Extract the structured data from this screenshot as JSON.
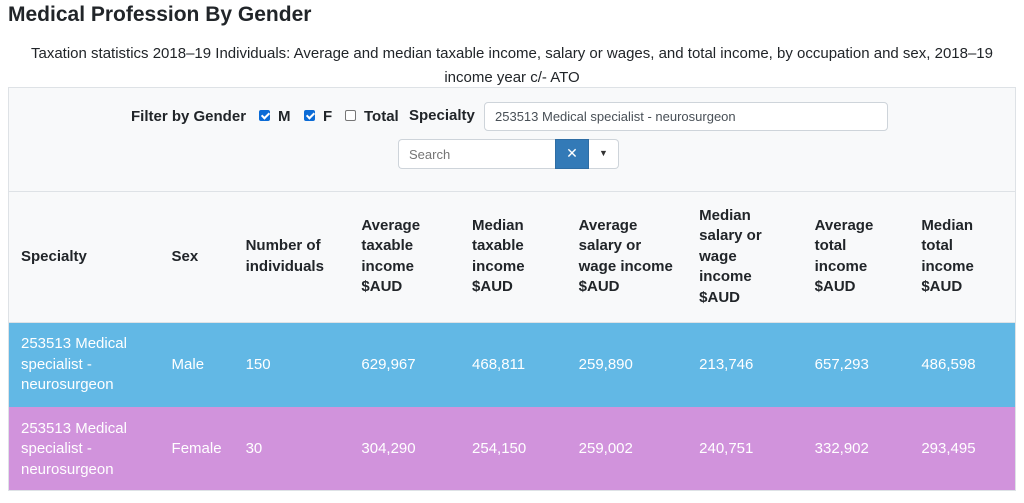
{
  "page": {
    "title": "Medical Profession By Gender",
    "subtitle": "Taxation statistics 2018–19 Individuals: Average and median taxable income, salary or wages, and total income, by occupation and sex, 2018–19 income year c/- ATO"
  },
  "filters": {
    "gender_label": "Filter by Gender",
    "male_label": "M",
    "female_label": "F",
    "total_label": "Total",
    "male_checked": true,
    "female_checked": true,
    "total_checked": false,
    "specialty_label": "Specialty",
    "specialty_value": "253513 Medical specialist - neurosurgeon",
    "search_placeholder": "Search",
    "clear_symbol": "✕",
    "dropdown_symbol": "▼"
  },
  "table": {
    "headers": [
      "Specialty",
      "Sex",
      "Number of individuals",
      "Average taxable income $AUD",
      "Median taxable income $AUD",
      "Average salary or wage income $AUD",
      "Median salary or wage income $AUD",
      "Average total income $AUD",
      "Median total income $AUD"
    ],
    "rows": [
      {
        "specialty": "253513 Medical specialist - neurosurgeon",
        "sex": "Male",
        "individuals": "150",
        "avg_taxable": "629,967",
        "median_taxable": "468,811",
        "avg_salary": "259,890",
        "median_salary": "213,746",
        "avg_total": "657,293",
        "median_total": "486,598",
        "color": "#62b8e5"
      },
      {
        "specialty": "253513 Medical specialist - neurosurgeon",
        "sex": "Female",
        "individuals": "30",
        "avg_taxable": "304,290",
        "median_taxable": "254,150",
        "avg_salary": "259,002",
        "median_salary": "240,751",
        "avg_total": "332,902",
        "median_total": "293,495",
        "color": "#d193dc"
      }
    ]
  }
}
